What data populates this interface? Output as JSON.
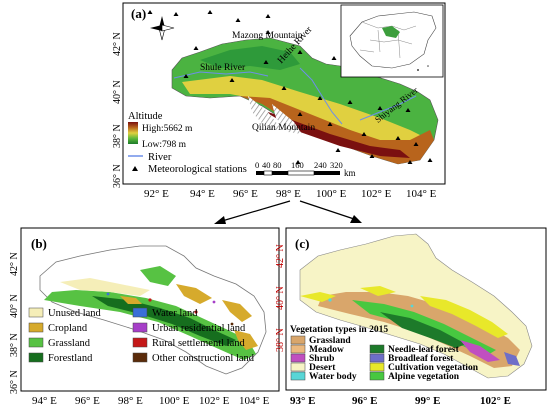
{
  "panel_a": {
    "label": "(a)",
    "places": [
      "Mazong Mountain",
      "Shule River",
      "Heihe River",
      "Qilian Mountain",
      "Shiyang River"
    ],
    "legend": {
      "title": "Altitude",
      "high": "High:5662 m",
      "low": "Low:798 m",
      "river": "River",
      "stations": "Meteorological stations"
    },
    "scale": {
      "ticks": [
        "0",
        "40",
        "80",
        "160",
        "240",
        "320"
      ],
      "unit": "km"
    },
    "lon_ticks": [
      "92° E",
      "94° E",
      "96° E",
      "98° E",
      "100° E",
      "102° E",
      "104° E"
    ],
    "lat_ticks": [
      "42° N",
      "40° N",
      "38° N",
      "36° N"
    ]
  },
  "panel_b": {
    "label": "(b)",
    "legend": [
      {
        "label": "Unused land",
        "color": "#f5eeb8"
      },
      {
        "label": "Cropland",
        "color": "#d6aa2c"
      },
      {
        "label": "Grassland",
        "color": "#57c243"
      },
      {
        "label": "Forestland",
        "color": "#166e1e"
      },
      {
        "label": "Water land",
        "color": "#3a6fd8"
      },
      {
        "label": "Urban residential land",
        "color": "#a63fc8"
      },
      {
        "label": "Rural settlementl land",
        "color": "#c41818"
      },
      {
        "label": "Other constructionl land",
        "color": "#5a2b0a"
      }
    ],
    "lon_ticks": [
      "94° E",
      "96° E",
      "98° E",
      "100° E",
      "102° E",
      "104° E"
    ],
    "lat_ticks": [
      "42° N",
      "40° N",
      "38° N",
      "36° N"
    ]
  },
  "panel_c": {
    "label": "(c)",
    "legend_title": "Vegetation types in 2015",
    "legend_left": [
      {
        "label": "Grassland",
        "color": "#d9a66b"
      },
      {
        "label": "Meadow",
        "color": "#ecb97f"
      },
      {
        "label": "Shrub",
        "color": "#c04fc0"
      },
      {
        "label": "Desert",
        "color": "#f7f4c6"
      },
      {
        "label": "Water body",
        "color": "#58d6d6"
      }
    ],
    "legend_right": [
      {
        "label": "Needle-leaf forest",
        "color": "#1d7a2a"
      },
      {
        "label": "Broadleaf forest",
        "color": "#6e6ec8"
      },
      {
        "label": "Cultivation vegetation",
        "color": "#e8e82a"
      },
      {
        "label": "Alpine vegetation",
        "color": "#47c840"
      }
    ],
    "lon_ticks": [
      "93° E",
      "96° E",
      "99° E",
      "102° E"
    ],
    "lat_ticks": [
      "42° N",
      "40° N",
      "38° N"
    ]
  }
}
